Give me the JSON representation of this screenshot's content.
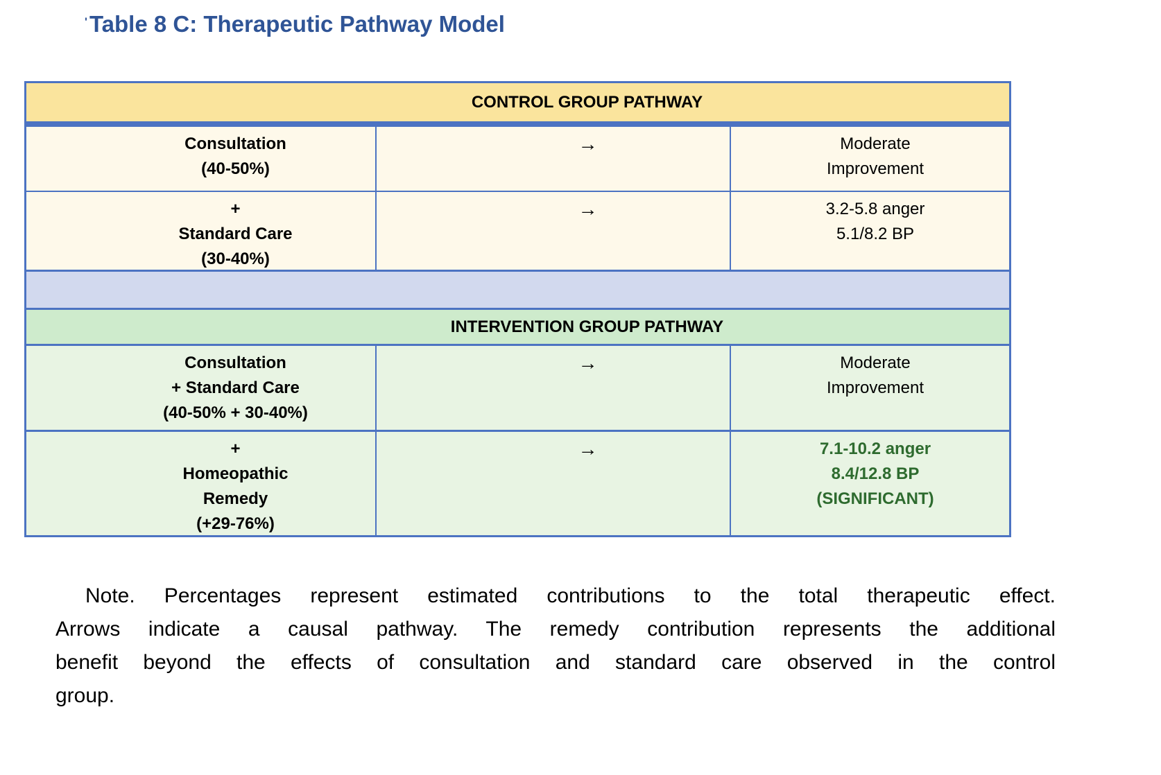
{
  "title": {
    "mark": "'",
    "text": "Table 8 C: Therapeutic Pathway Model"
  },
  "colors": {
    "title_blue": "#2F5496",
    "table_border_blue": "#4C73C2",
    "control_header_bg": "#FAE49D",
    "control_row_bg": "#FEF9EA",
    "spacer_row_bg": "#D2D9EE",
    "intervention_header_bg": "#CEEBCC",
    "intervention_row_bg": "#E8F4E3",
    "significant_green": "#2E6B2F",
    "body_text": "#000000"
  },
  "table": {
    "control": {
      "header": "CONTROL GROUP PATHWAY",
      "rows": [
        {
          "left": [
            "Consultation",
            "(40-50%)"
          ],
          "arrow": "→",
          "right": [
            "Moderate",
            "Improvement"
          ]
        },
        {
          "left": [
            "+",
            "Standard Care",
            "(30-40%)"
          ],
          "arrow": "→",
          "right": [
            "3.2-5.8 anger",
            "5.1/8.2 BP"
          ]
        }
      ]
    },
    "intervention": {
      "header": "INTERVENTION GROUP PATHWAY",
      "rows": [
        {
          "left": [
            "Consultation",
            "+ Standard Care",
            "(40-50% + 30-40%)"
          ],
          "arrow": "→",
          "right": [
            "Moderate",
            "Improvement"
          ]
        },
        {
          "left": [
            "+",
            "Homeopathic",
            "Remedy",
            "(+29-76%)"
          ],
          "arrow": "→",
          "right": [
            "7.1-10.2 anger",
            "8.4/12.8 BP",
            "(SIGNIFICANT)"
          ],
          "right_emphasis": "significant"
        }
      ]
    }
  },
  "note": {
    "lines": [
      "Note. Percentages represent estimated contributions to the total therapeutic effect.",
      "Arrows indicate a causal pathway. The remedy contribution represents the additional",
      "benefit beyond the effects of consultation and standard care observed in the control",
      "group."
    ]
  }
}
